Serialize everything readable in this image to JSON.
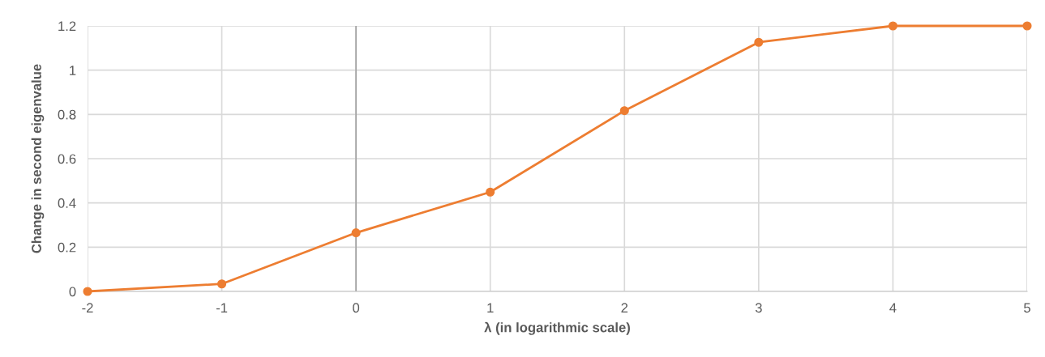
{
  "chart_data": {
    "type": "line",
    "xlabel": "λ (in logarithmic scale)",
    "ylabel": "Change in second eigenvalue",
    "x": [
      -2,
      -1,
      0,
      1,
      2,
      3,
      4,
      5
    ],
    "series": [
      {
        "color": "#ed7d31",
        "values": [
          0,
          0.034,
          0.265,
          0.449,
          0.817,
          1.126,
          1.2,
          1.2
        ]
      }
    ],
    "xlim": [
      -2,
      5
    ],
    "xticks": [
      -2,
      -1,
      0,
      1,
      2,
      3,
      4,
      5
    ],
    "ylim": [
      0,
      1.2
    ],
    "yticks": [
      0,
      {
        "value": 0.2,
        "label": "0.2"
      },
      {
        "value": 0.4,
        "label": "0.4"
      },
      {
        "value": 0.6,
        "label": "0.6"
      },
      {
        "value": 0.8,
        "label": "0.8"
      },
      1,
      {
        "value": 1.2,
        "label": "1.2"
      }
    ],
    "ref_lines": [
      {
        "axis": "x",
        "value": 0,
        "label": null,
        "color": "#a6a6a6"
      }
    ],
    "grid": true,
    "marker": "circle",
    "line_style": "solid",
    "legend": false
  }
}
